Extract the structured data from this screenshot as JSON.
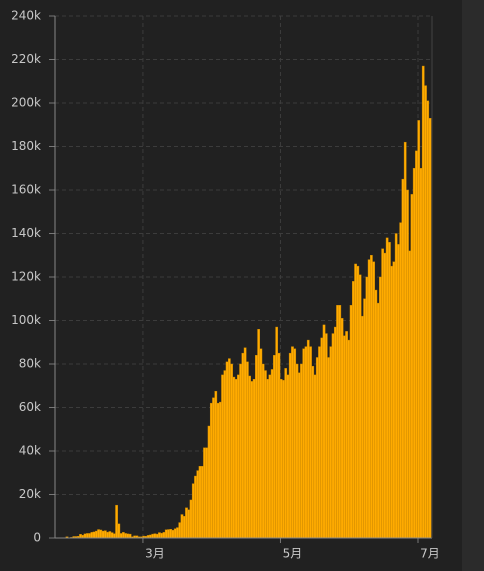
{
  "chart_data": {
    "type": "bar",
    "color": "#ffab00",
    "grid": true,
    "categories": [
      null,
      null,
      null,
      null,
      null,
      null,
      null,
      null,
      null,
      null,
      null,
      null,
      null,
      null,
      null,
      null,
      null,
      null,
      null,
      null,
      null,
      null,
      null,
      null,
      null,
      null,
      null,
      null,
      null,
      null,
      null,
      null,
      null,
      null,
      null,
      null,
      null,
      null,
      null,
      "3月",
      null,
      null,
      null,
      null,
      null,
      null,
      null,
      null,
      null,
      null,
      null,
      null,
      null,
      null,
      null,
      null,
      null,
      null,
      null,
      null,
      null,
      null,
      null,
      null,
      null,
      null,
      null,
      null,
      null,
      null,
      null,
      null,
      null,
      null,
      null,
      null,
      null,
      null,
      null,
      null,
      null,
      null,
      null,
      null,
      null,
      null,
      null,
      null,
      null,
      null,
      null,
      null,
      null,
      null,
      null,
      null,
      null,
      null,
      null,
      null,
      "5月",
      null,
      null,
      null,
      null,
      null,
      null,
      null,
      null,
      null,
      null,
      null,
      null,
      null,
      null,
      null,
      null,
      null,
      null,
      null,
      null,
      null,
      null,
      null,
      null,
      null,
      null,
      null,
      null,
      null,
      null,
      null,
      null,
      null,
      null,
      null,
      null,
      null,
      null,
      null,
      null,
      null,
      null,
      null,
      null,
      null,
      null,
      null,
      null,
      null,
      null,
      null,
      null,
      null,
      null,
      null,
      null,
      null,
      null,
      null,
      null,
      "7月"
    ],
    "values": [
      600,
      100,
      300,
      700,
      700,
      800,
      1700,
      1300,
      1900,
      2100,
      2100,
      2600,
      2800,
      3200,
      3900,
      3700,
      3200,
      3400,
      2700,
      3000,
      2500,
      2000,
      15100,
      6500,
      2100,
      2600,
      2100,
      1900,
      1800,
      600,
      1000,
      1000,
      600,
      600,
      900,
      800,
      1200,
      1400,
      1800,
      2000,
      1800,
      2500,
      2200,
      2600,
      3800,
      3900,
      4000,
      3600,
      4300,
      4800,
      7100,
      10800,
      10000,
      13900,
      13000,
      17500,
      25000,
      28500,
      31000,
      33000,
      33000,
      41500,
      41500,
      51500,
      62000,
      64500,
      67500,
      62000,
      62500,
      75000,
      77000,
      81000,
      82500,
      80000,
      74000,
      73000,
      75000,
      80000,
      85000,
      87500,
      81000,
      74500,
      72000,
      73000,
      84000,
      96000,
      87000,
      80000,
      77000,
      73000,
      75000,
      77500,
      84000,
      97000,
      85000,
      73000,
      72500,
      78000,
      75000,
      85000,
      88000,
      87000,
      80000,
      76000,
      80000,
      87000,
      88000,
      91000,
      88000,
      79000,
      75000,
      83000,
      88000,
      92000,
      98000,
      94000,
      83000,
      88000,
      94000,
      97000,
      107000,
      107000,
      101000,
      93000,
      95000,
      91000,
      107000,
      118000,
      126000,
      125000,
      121000,
      102000,
      110000,
      120000,
      128000,
      130000,
      127000,
      114000,
      108000,
      120000,
      133000,
      131000,
      138000,
      136000,
      125000,
      127000,
      140000,
      135000,
      145000,
      165000,
      182000,
      160000,
      132000,
      158000,
      170000,
      178000,
      192000,
      170000,
      217000,
      208000,
      201000,
      193000
    ],
    "ylim": [
      0,
      240000
    ],
    "yticks": [
      0,
      {
        "value": 20000,
        "label": "20k"
      },
      {
        "value": 40000,
        "label": "40k"
      },
      {
        "value": 60000,
        "label": "60k"
      },
      {
        "value": 80000,
        "label": "80k"
      },
      {
        "value": 100000,
        "label": "100k"
      },
      {
        "value": 120000,
        "label": "120k"
      },
      {
        "value": 140000,
        "label": "140k"
      },
      {
        "value": 160000,
        "label": "160k"
      },
      {
        "value": 180000,
        "label": "180k"
      },
      {
        "value": 200000,
        "label": "200k"
      },
      {
        "value": 220000,
        "label": "220k"
      },
      {
        "value": 240000,
        "label": "240k"
      }
    ]
  }
}
